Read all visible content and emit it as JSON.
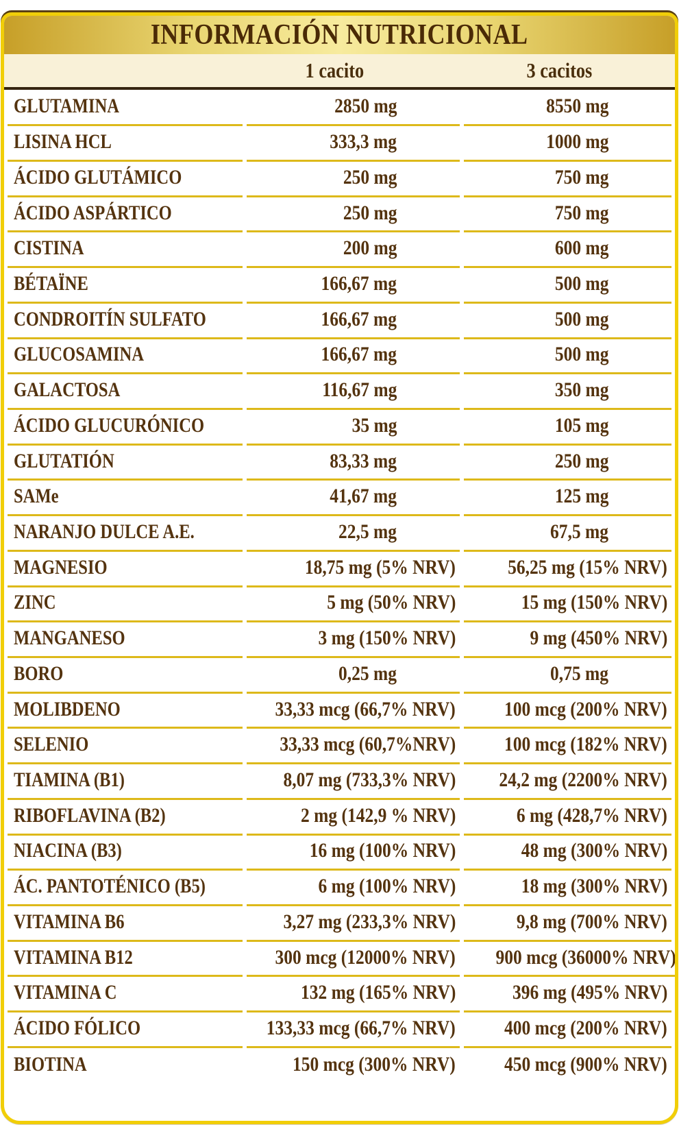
{
  "header": {
    "title": "INFORMACIÓN NUTRICIONAL"
  },
  "column_headers": {
    "serving_1": "1 cacito",
    "serving_3": "3 cacitos"
  },
  "colors": {
    "gold_band_edge": "#C79F28",
    "gold_band_center": "#F7EB9E",
    "outer_yellow_border": "#F1CE08",
    "separator_yellow": "#DDB91A",
    "cream_band": "#F9F1D8",
    "dark_divider": "#362510",
    "text_brown": "#54330F",
    "title_brown": "#4A2A06"
  },
  "rows": [
    {
      "label": "GLUTAMINA",
      "v1": "2850 mg",
      "v3": "8550 mg"
    },
    {
      "label": "LISINA HCL",
      "v1": "333,3 mg",
      "v3": "1000 mg"
    },
    {
      "label": "ÁCIDO GLUTÁMICO",
      "v1": "250 mg",
      "v3": "750 mg"
    },
    {
      "label": "ÁCIDO ASPÁRTICO",
      "v1": "250 mg",
      "v3": "750 mg"
    },
    {
      "label": "CISTINA",
      "v1": "200 mg",
      "v3": "600 mg"
    },
    {
      "label": "BÉTAÏNE",
      "v1": "166,67 mg",
      "v3": "500 mg"
    },
    {
      "label": "CONDROITÍN SULFATO",
      "v1": "166,67 mg",
      "v3": "500 mg"
    },
    {
      "label": "GLUCOSAMINA",
      "v1": "166,67 mg",
      "v3": "500 mg"
    },
    {
      "label": "GALACTOSA",
      "v1": "116,67 mg",
      "v3": "350 mg"
    },
    {
      "label": "ÁCIDO GLUCURÓNICO",
      "v1": "35 mg",
      "v3": "105 mg"
    },
    {
      "label": "GLUTATIÓN",
      "v1": "83,33 mg",
      "v3": "250 mg"
    },
    {
      "label": "SAMe",
      "v1": "41,67 mg",
      "v3": "125 mg"
    },
    {
      "label": "NARANJO DULCE A.E.",
      "v1": "22,5 mg",
      "v3": "67,5 mg"
    },
    {
      "label": "MAGNESIO",
      "v1": "18,75 mg (5% NRV)",
      "v3": "56,25 mg (15% NRV)"
    },
    {
      "label": "ZINC",
      "v1": "5 mg (50% NRV)",
      "v3": "15 mg (150% NRV)"
    },
    {
      "label": "MANGANESO",
      "v1": "3 mg (150% NRV)",
      "v3": "9 mg (450% NRV)"
    },
    {
      "label": "BORO",
      "v1": "0,25 mg",
      "v3": "0,75 mg"
    },
    {
      "label": "MOLIBDENO",
      "v1": "33,33 mcg (66,7% NRV)",
      "v3": "100 mcg (200% NRV)"
    },
    {
      "label": "SELENIO",
      "v1": "33,33 mcg (60,7%NRV)",
      "v3": "100 mcg (182% NRV)"
    },
    {
      "label": "TIAMINA (B1)",
      "v1": "8,07 mg (733,3% NRV)",
      "v3": "24,2 mg (2200% NRV)"
    },
    {
      "label": "RIBOFLAVINA (B2)",
      "v1": "2 mg (142,9 % NRV)",
      "v3": "6 mg (428,7% NRV)"
    },
    {
      "label": "NIACINA (B3)",
      "v1": "16 mg (100% NRV)",
      "v3": "48 mg (300% NRV)"
    },
    {
      "label": "ÁC. PANTOTÉNICO (B5)",
      "v1": "6 mg (100% NRV)",
      "v3": "18 mg (300% NRV)"
    },
    {
      "label": "VITAMINA B6",
      "v1": "3,27 mg (233,3% NRV)",
      "v3": "9,8 mg (700% NRV)"
    },
    {
      "label": "VITAMINA B12",
      "v1": "300 mcg (12000% NRV)",
      "v3": "900 mcg (36000% NRV)"
    },
    {
      "label": "VITAMINA C",
      "v1": "132 mg (165% NRV)",
      "v3": "396 mg (495% NRV)"
    },
    {
      "label": "ÁCIDO FÓLICO",
      "v1": "133,33 mcg (66,7% NRV)",
      "v3": "400 mcg (200% NRV)"
    },
    {
      "label": "BIOTINA",
      "v1": "150 mcg (300% NRV)",
      "v3": "450 mcg (900% NRV)"
    }
  ]
}
